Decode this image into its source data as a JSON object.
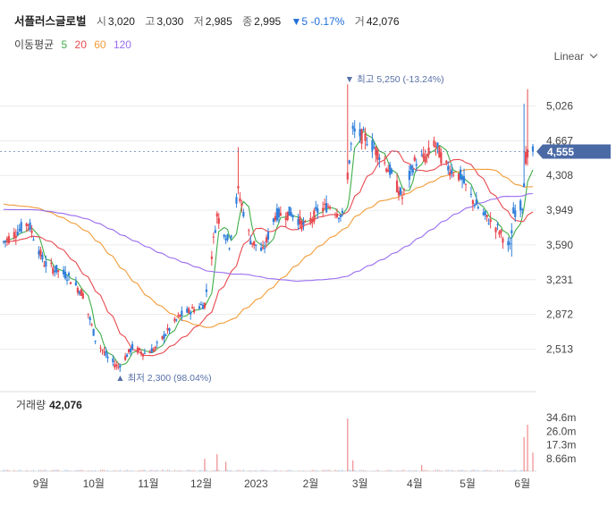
{
  "header": {
    "name": "서플러스글로벌",
    "open_label": "시",
    "open": "3,020",
    "high_label": "고",
    "high": "3,030",
    "low_label": "저",
    "low": "2,985",
    "close_label": "종",
    "close": "2,995",
    "change": "▼5 -0.17%",
    "volume_label": "거",
    "volume": "42,076"
  },
  "ma_legend": {
    "label": "이동평균",
    "items": [
      {
        "period": "5",
        "color": "#3fae49"
      },
      {
        "period": "20",
        "color": "#e8494f"
      },
      {
        "period": "60",
        "color": "#f29c38"
      },
      {
        "period": "120",
        "color": "#9a6cf0"
      }
    ]
  },
  "scale_toggle": "Linear",
  "price_axis_ticks": [
    "5,026",
    "4,667",
    "4,308",
    "3,949",
    "3,590",
    "3,231",
    "2,872",
    "2,513"
  ],
  "current_price_tag": "4,555",
  "annotations": {
    "high": "최고 5,250 (-13.24%)",
    "low": "최저 2,300 (98.04%)"
  },
  "volume_panel": {
    "title": "거래량",
    "value": "42,076",
    "ticks": [
      "34.6m",
      "26.0m",
      "17.3m",
      "8.66m"
    ]
  },
  "x_axis_labels": [
    "9월",
    "10월",
    "11월",
    "12월",
    "2023",
    "2월",
    "3월",
    "4월",
    "5월",
    "6월"
  ],
  "colors": {
    "up": "#e8494f",
    "down": "#2f7fdc",
    "tag": "#4a6aa6",
    "grid": "#ececec"
  },
  "chart_data": {
    "type": "candlestick",
    "y_range": [
      2300,
      5260
    ],
    "x_range": [
      "2022-08",
      "2023-06"
    ],
    "price_ticks": [
      5026,
      4667,
      4308,
      3949,
      3590,
      3231,
      2872,
      2513
    ],
    "volume_ticks_m": [
      34.6,
      26.0,
      17.3,
      8.66
    ],
    "close_waypoints": [
      [
        "2022-08-16",
        3620
      ],
      [
        "2022-08-30",
        3820
      ],
      [
        "2022-09-08",
        3400
      ],
      [
        "2022-09-22",
        3260
      ],
      [
        "2022-09-30",
        3080
      ],
      [
        "2022-10-07",
        2620
      ],
      [
        "2022-10-14",
        2420
      ],
      [
        "2022-10-20",
        2330
      ],
      [
        "2022-10-28",
        2530
      ],
      [
        "2022-11-04",
        2470
      ],
      [
        "2022-11-10",
        2520
      ],
      [
        "2022-11-15",
        2650
      ],
      [
        "2022-11-24",
        2860
      ],
      [
        "2022-12-08",
        2980
      ],
      [
        "2022-12-15",
        3900
      ],
      [
        "2022-12-22",
        3600
      ],
      [
        "2022-12-27",
        4150
      ],
      [
        "2023-01-03",
        3640
      ],
      [
        "2023-01-10",
        3520
      ],
      [
        "2023-01-17",
        3900
      ],
      [
        "2023-01-26",
        3920
      ],
      [
        "2023-02-03",
        3780
      ],
      [
        "2023-02-10",
        3940
      ],
      [
        "2023-02-17",
        4000
      ],
      [
        "2023-02-24",
        3880
      ],
      [
        "2023-03-02",
        4760
      ],
      [
        "2023-03-09",
        4700
      ],
      [
        "2023-03-16",
        4550
      ],
      [
        "2023-03-23",
        4350
      ],
      [
        "2023-03-30",
        4080
      ],
      [
        "2023-04-06",
        4450
      ],
      [
        "2023-04-13",
        4500
      ],
      [
        "2023-04-17",
        4650
      ],
      [
        "2023-04-24",
        4400
      ],
      [
        "2023-05-02",
        4300
      ],
      [
        "2023-05-09",
        4050
      ],
      [
        "2023-05-16",
        3880
      ],
      [
        "2023-05-23",
        3760
      ],
      [
        "2023-05-30",
        3560
      ],
      [
        "2023-06-01",
        3920
      ],
      [
        "2023-06-06",
        4000
      ],
      [
        "2023-06-08",
        4500
      ],
      [
        "2023-06-12",
        4555
      ]
    ],
    "volume_spikes_m": [
      [
        "2022-12-08",
        8
      ],
      [
        "2022-12-15",
        11
      ],
      [
        "2022-12-20",
        6
      ],
      [
        "2023-02-27",
        34
      ],
      [
        "2023-03-02",
        7
      ],
      [
        "2023-04-10",
        4
      ],
      [
        "2023-06-07",
        22
      ],
      [
        "2023-06-09",
        30
      ],
      [
        "2023-06-12",
        12
      ]
    ]
  }
}
